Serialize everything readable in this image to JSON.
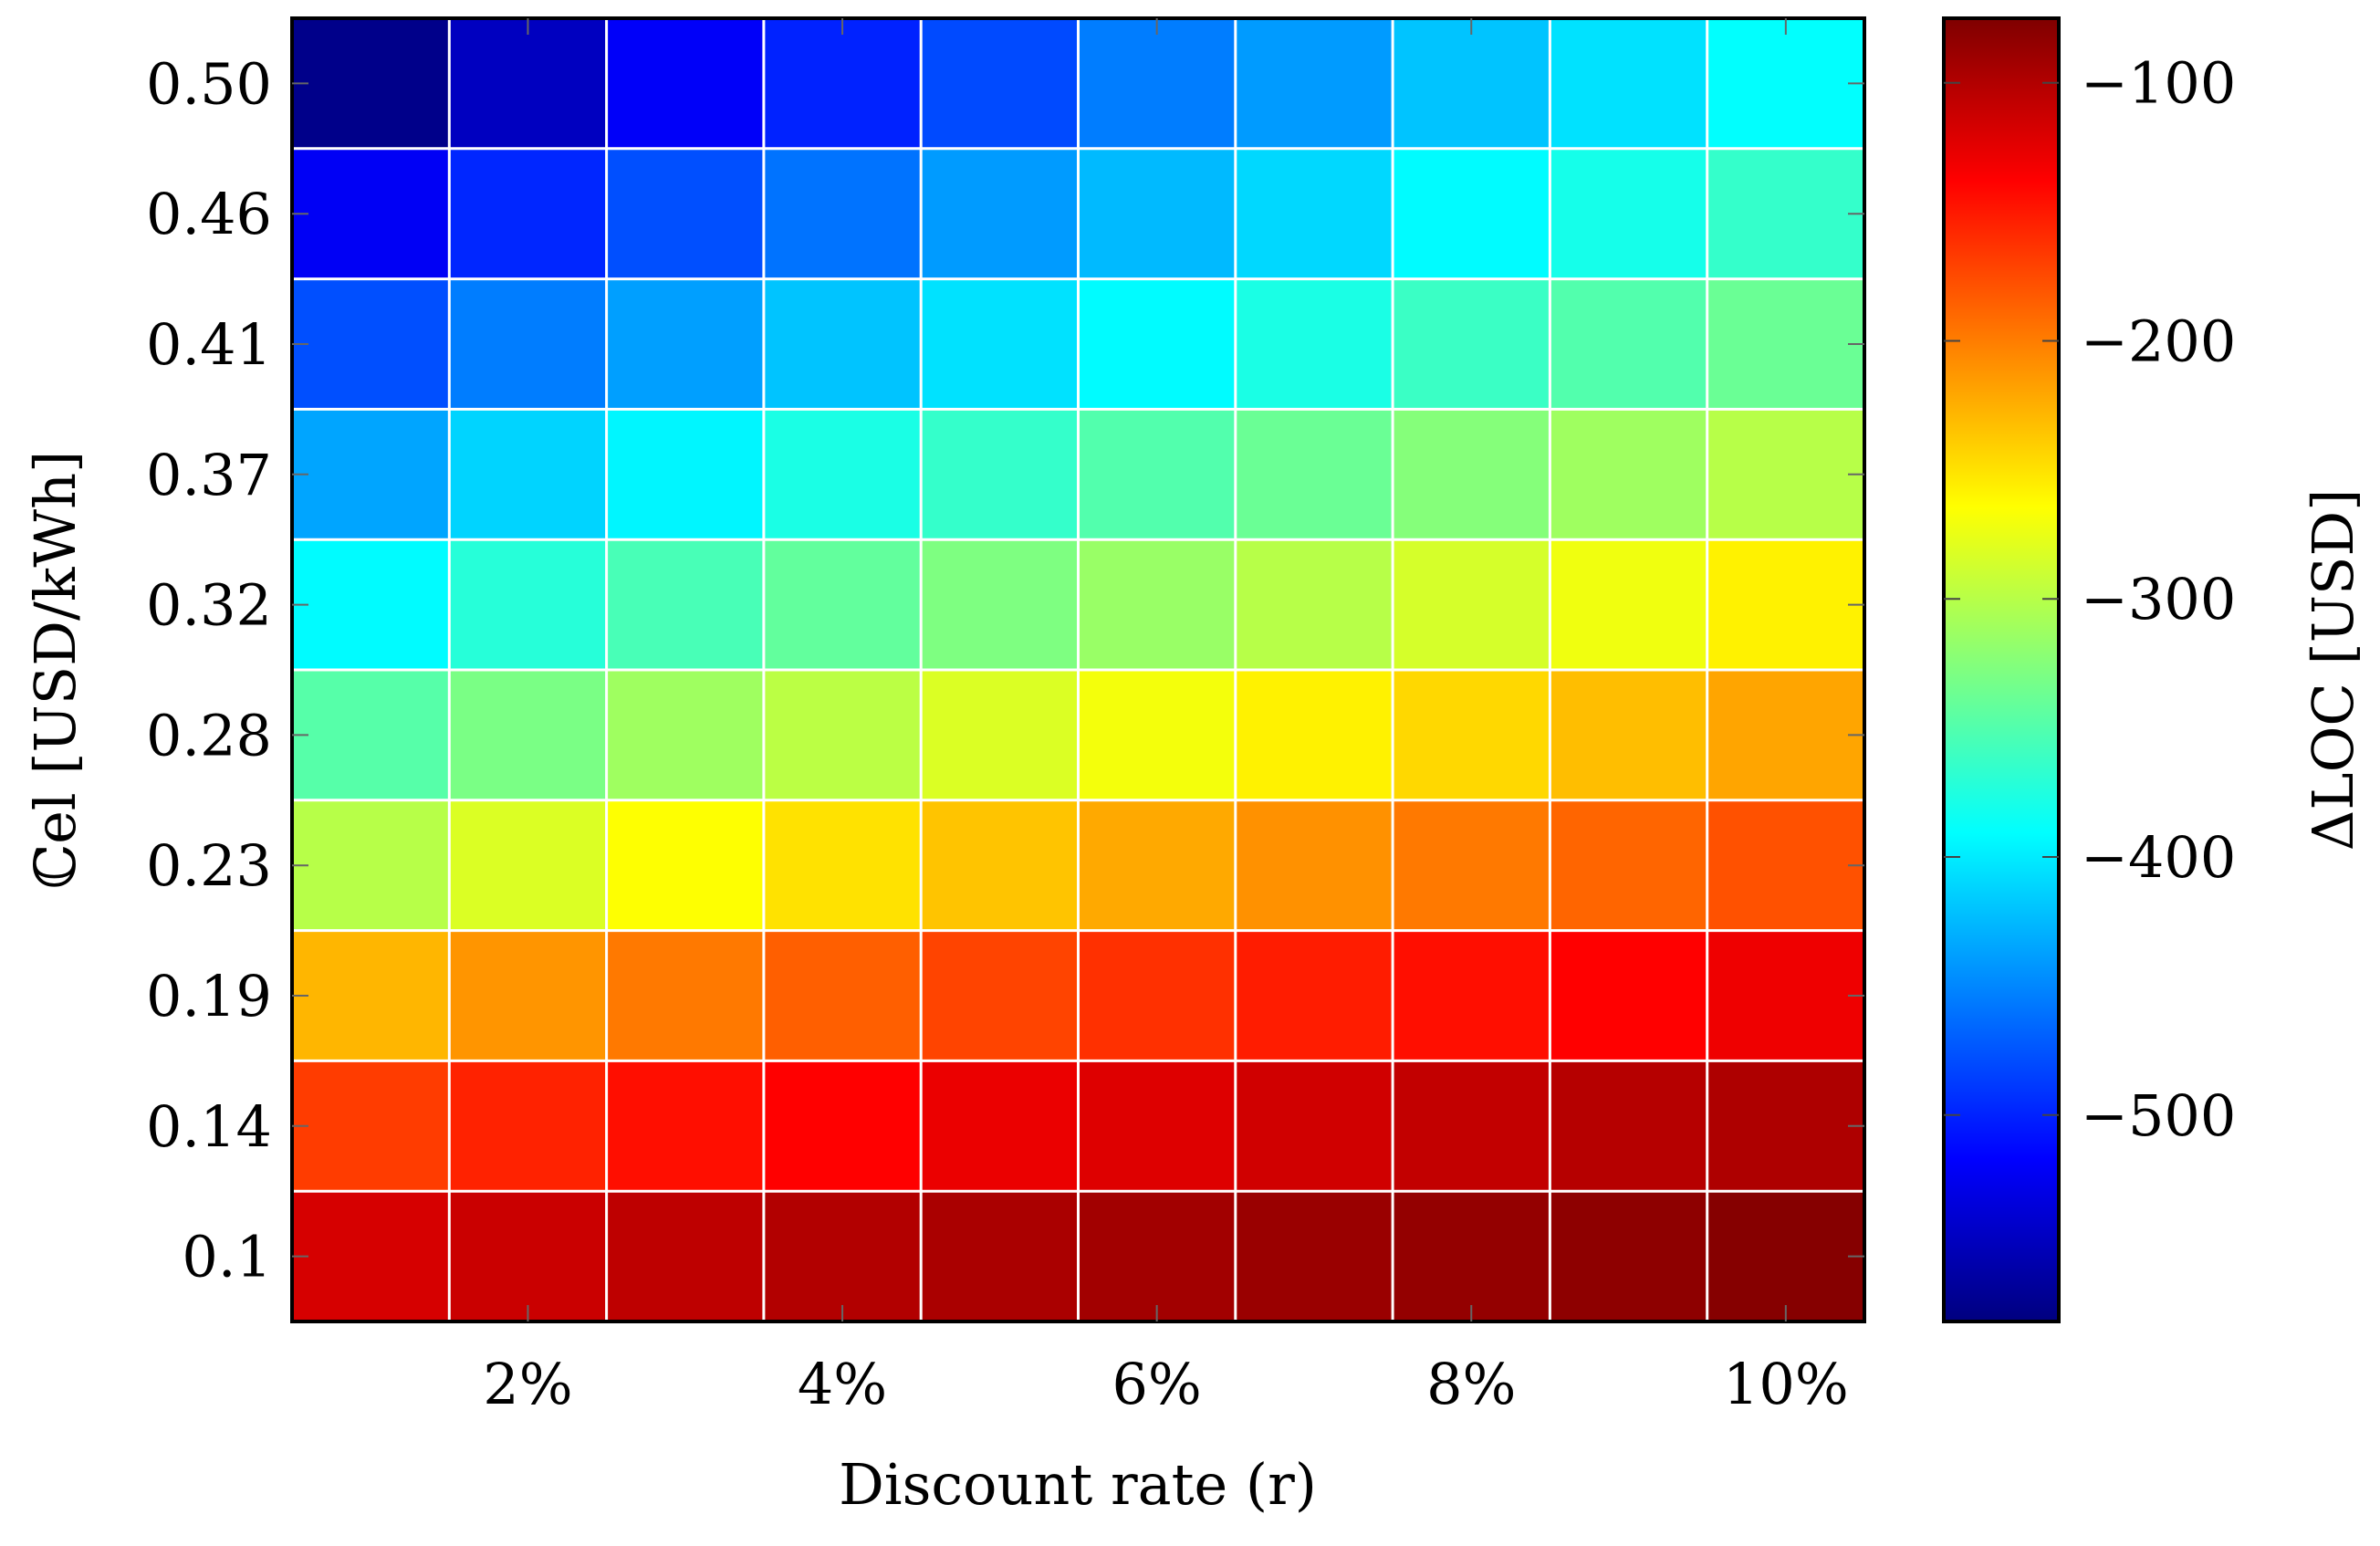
{
  "chart_data": {
    "type": "heatmap",
    "title": "",
    "xlabel": "Discount rate (r)",
    "ylabel": "ℂel [USD/kWh]",
    "x": [
      1,
      2,
      3,
      4,
      5,
      6,
      7,
      8,
      9,
      10
    ],
    "x_tick_labels": [
      "2%",
      "4%",
      "6%",
      "8%",
      "10%"
    ],
    "x_tick_values": [
      2,
      4,
      6,
      8,
      10
    ],
    "y_tick_labels": [
      "0.50",
      "0.46",
      "0.41",
      "0.37",
      "0.32",
      "0.28",
      "0.23",
      "0.19",
      "0.14",
      "0.1"
    ],
    "colorbar": {
      "label": "ΔLOC [USD]",
      "range": [
        -580,
        -75
      ],
      "ticks": [
        -100,
        -200,
        -300,
        -400,
        -500
      ],
      "tick_labels": [
        "−100",
        "−200",
        "−300",
        "−400",
        "−500"
      ],
      "colormap": "jet"
    },
    "z": [
      [
        -575,
        -548,
        -520,
        -500,
        -480,
        -455,
        -440,
        -420,
        -405,
        -390
      ],
      [
        -522,
        -498,
        -478,
        -460,
        -440,
        -425,
        -410,
        -392,
        -380,
        -365
      ],
      [
        -478,
        -455,
        -438,
        -420,
        -405,
        -392,
        -378,
        -362,
        -350,
        -338
      ],
      [
        -435,
        -412,
        -395,
        -378,
        -365,
        -350,
        -338,
        -325,
        -312,
        -300
      ],
      [
        -392,
        -372,
        -355,
        -342,
        -328,
        -315,
        -300,
        -285,
        -272,
        -258
      ],
      [
        -348,
        -330,
        -312,
        -298,
        -282,
        -270,
        -258,
        -245,
        -232,
        -220
      ],
      [
        -300,
        -282,
        -265,
        -250,
        -235,
        -222,
        -210,
        -198,
        -188,
        -178
      ],
      [
        -228,
        -212,
        -198,
        -185,
        -172,
        -162,
        -152,
        -145,
        -138,
        -130
      ],
      [
        -168,
        -155,
        -145,
        -138,
        -128,
        -122,
        -115,
        -108,
        -102,
        -98
      ],
      [
        -118,
        -112,
        -106,
        -100,
        -96,
        -92,
        -88,
        -85,
        -82,
        -78
      ]
    ]
  }
}
